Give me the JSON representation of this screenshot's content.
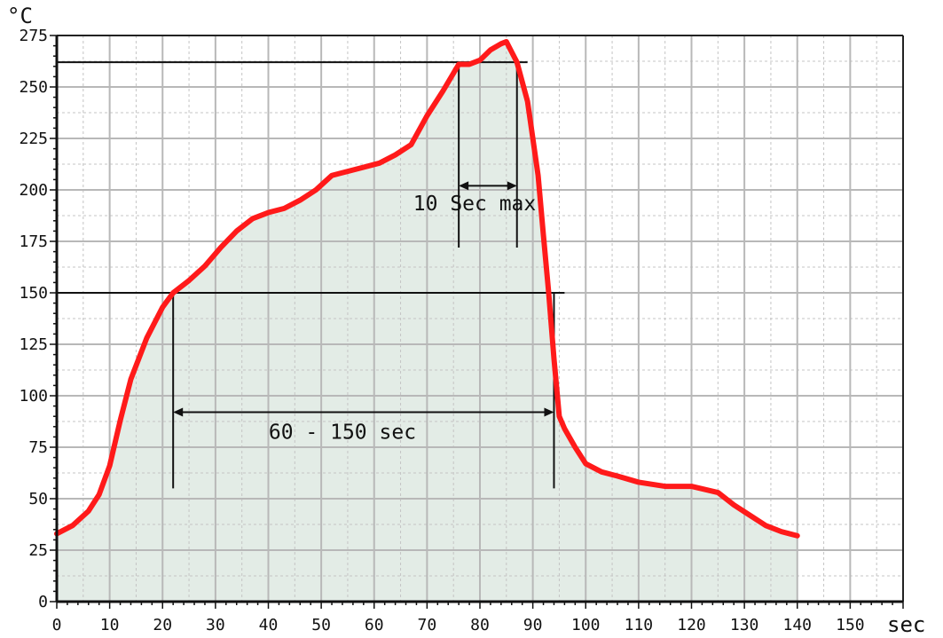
{
  "chart_data": {
    "type": "line",
    "title": "",
    "xlabel": "sec",
    "ylabel": "°C",
    "xlim": [
      0,
      160
    ],
    "ylim": [
      0,
      275
    ],
    "x_ticks": [
      "0",
      "10",
      "20",
      "30",
      "40",
      "50",
      "60",
      "70",
      "80",
      "90",
      "100",
      "110",
      "120",
      "130",
      "140",
      "150"
    ],
    "y_ticks": [
      "0",
      "25",
      "50",
      "75",
      "100",
      "125",
      "150",
      "175",
      "200",
      "225",
      "250",
      "275"
    ],
    "grid": true,
    "series": [
      {
        "color": "#ff1a1a",
        "x": [
          0,
          3,
          6,
          8,
          10,
          12,
          14,
          17,
          20,
          22,
          25,
          28,
          31,
          34,
          37,
          40,
          43,
          46,
          49,
          52,
          55,
          58,
          61,
          64,
          67,
          70,
          73,
          76,
          78,
          80,
          82,
          84,
          85,
          86,
          87,
          89,
          91,
          92,
          93,
          94,
          95,
          96,
          98,
          100,
          103,
          106,
          110,
          115,
          120,
          125,
          128,
          131,
          134,
          137,
          140
        ],
        "y": [
          33,
          37,
          44,
          52,
          66,
          88,
          108,
          128,
          143,
          150,
          156,
          163,
          172,
          180,
          186,
          189,
          191,
          195,
          200,
          207,
          209,
          211,
          213,
          217,
          222,
          236,
          248,
          261,
          261,
          263,
          268,
          271,
          272,
          267,
          262,
          243,
          207,
          178,
          150,
          118,
          90,
          84,
          75,
          67,
          63,
          61,
          58,
          56,
          56,
          53,
          47,
          42,
          37,
          34,
          32
        ]
      }
    ],
    "reference_lines": [
      {
        "type": "horizontal",
        "y": 262,
        "x_from": 0,
        "x_to": 89
      },
      {
        "type": "horizontal",
        "y": 150,
        "x_from": 0,
        "x_to": 96
      },
      {
        "type": "vertical",
        "x": 22,
        "y_from": 55,
        "y_to": 150
      },
      {
        "type": "vertical",
        "x": 94,
        "y_from": 55,
        "y_to": 150
      },
      {
        "type": "vertical",
        "x": 76,
        "y_from": 172,
        "y_to": 262
      },
      {
        "type": "vertical",
        "x": 87,
        "y_from": 172,
        "y_to": 262
      }
    ],
    "annotations": [
      {
        "text": "10 Sec max",
        "arrow_x": [
          76,
          87
        ],
        "arrow_y": 202,
        "text_x": 79,
        "text_y": 190
      },
      {
        "text": "60 - 150 sec",
        "arrow_x": [
          22,
          94
        ],
        "arrow_y": 92,
        "text_x": 54,
        "text_y": 79
      }
    ]
  }
}
